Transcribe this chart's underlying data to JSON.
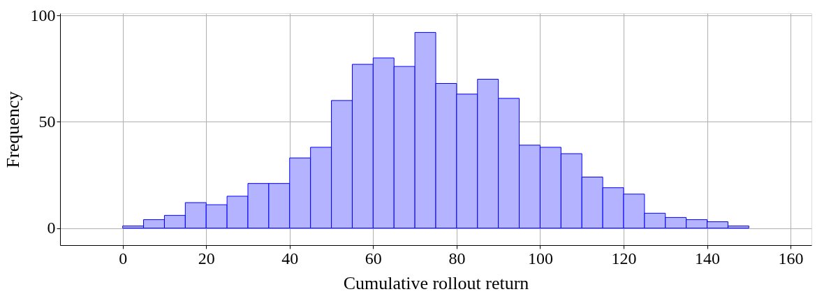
{
  "chart_data": {
    "type": "histogram",
    "xlabel": "Cumulative rollout return",
    "ylabel": "Frequency",
    "bins": [
      0,
      5,
      10,
      15,
      20,
      25,
      30,
      35,
      40,
      45,
      50,
      55,
      60,
      65,
      70,
      75,
      80,
      85,
      90,
      95,
      100,
      105,
      110,
      115,
      120,
      125,
      130,
      135,
      140,
      145,
      150
    ],
    "values": [
      1,
      4,
      6,
      12,
      11,
      15,
      21,
      21,
      33,
      38,
      60,
      77,
      80,
      76,
      92,
      68,
      63,
      70,
      61,
      39,
      38,
      35,
      24,
      19,
      16,
      7,
      5,
      4,
      3,
      1
    ],
    "color": "#b3b3ff",
    "xlim": [
      -15,
      165
    ],
    "xticks": [
      0,
      20,
      40,
      60,
      80,
      100,
      120,
      140,
      160
    ],
    "ylim": [
      -8,
      101
    ],
    "yticks": [
      0,
      50,
      100
    ],
    "grid": true
  }
}
